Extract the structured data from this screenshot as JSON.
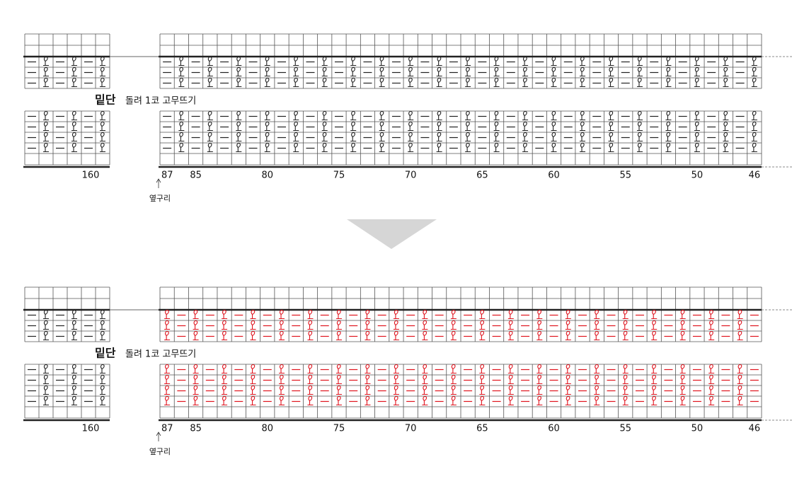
{
  "panels": [
    {
      "title": "밑단",
      "subtitle": "돌려 1코 고무뜨기",
      "left_label": "160",
      "column_labels": [
        "87",
        "85",
        "80",
        "75",
        "70",
        "65",
        "60",
        "55",
        "50",
        "46"
      ],
      "side_note": "옆구리",
      "color": "#222222"
    },
    {
      "title": "밑단",
      "subtitle": "돌려 1코 고무뜨기",
      "left_label": "160",
      "column_labels": [
        "87",
        "85",
        "80",
        "75",
        "70",
        "65",
        "60",
        "55",
        "50",
        "46"
      ],
      "side_note": "옆구리",
      "color": "#e0141e"
    }
  ]
}
